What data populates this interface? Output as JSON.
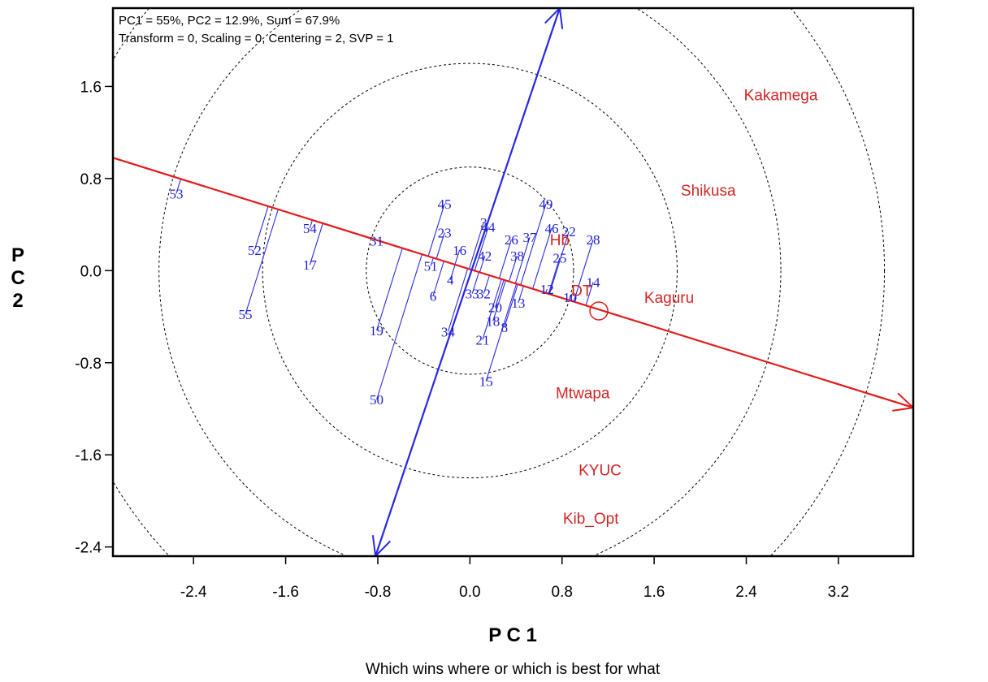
{
  "chart_data": {
    "type": "scatter",
    "info_lines": [
      "PC1 = 55%, PC2 = 12.9%, Sum = 67.9%",
      "Transform = 0, Scaling = 0, Centering = 2, SVP = 1"
    ],
    "xlabel": "P C 1",
    "ylabel": "P C 2",
    "caption": "Which wins where or which is best for what",
    "xlim": [
      -3.1,
      3.85
    ],
    "ylim": [
      -2.48,
      2.28
    ],
    "xticks": [
      "-2.4",
      "-1.6",
      "-0.8",
      "0.0",
      "0.8",
      "1.6",
      "2.4",
      "3.2"
    ],
    "yticks": [
      "1.6",
      "0.8",
      "0.0",
      "-0.8",
      "-1.6",
      "-2.4"
    ],
    "ring_radii": [
      0.9,
      1.8,
      2.7,
      3.6
    ],
    "average_environment_axis": {
      "from": [
        -3.1,
        0.98
      ],
      "to": [
        3.85,
        -1.19
      ]
    },
    "perpendicular_axis": {
      "from": [
        -0.82,
        -2.48
      ],
      "to": [
        0.78,
        2.28
      ]
    },
    "average_environment_marker": [
      1.12,
      -0.35
    ],
    "environments": [
      {
        "label": "Kakamega",
        "x": 2.7,
        "y": 1.53
      },
      {
        "label": "Shikusa",
        "x": 2.07,
        "y": 0.7
      },
      {
        "label": "Kaguru",
        "x": 1.73,
        "y": -0.23
      },
      {
        "label": "Mtwapa",
        "x": 0.98,
        "y": -1.06
      },
      {
        "label": "KYUC",
        "x": 1.13,
        "y": -1.73
      },
      {
        "label": "Kib_Opt",
        "x": 1.05,
        "y": -2.15
      },
      {
        "label": "Hb",
        "x": 0.78,
        "y": 0.27
      },
      {
        "label": "DT",
        "x": 0.97,
        "y": -0.17
      }
    ],
    "genotypes": [
      {
        "label": "53",
        "x": -2.55,
        "y": 0.67
      },
      {
        "label": "54",
        "x": -1.39,
        "y": 0.37
      },
      {
        "label": "52",
        "x": -1.87,
        "y": 0.18
      },
      {
        "label": "17",
        "x": -1.39,
        "y": 0.05
      },
      {
        "label": "55",
        "x": -1.95,
        "y": -0.38
      },
      {
        "label": "31",
        "x": -0.81,
        "y": 0.26
      },
      {
        "label": "19",
        "x": -0.81,
        "y": -0.52
      },
      {
        "label": "50",
        "x": -0.81,
        "y": -1.12
      },
      {
        "label": "45",
        "x": -0.22,
        "y": 0.58
      },
      {
        "label": "23",
        "x": -0.22,
        "y": 0.33
      },
      {
        "label": "16",
        "x": -0.09,
        "y": 0.18
      },
      {
        "label": "51",
        "x": -0.34,
        "y": 0.04
      },
      {
        "label": "4",
        "x": -0.17,
        "y": -0.08
      },
      {
        "label": "6",
        "x": -0.32,
        "y": -0.22
      },
      {
        "label": "34",
        "x": -0.19,
        "y": -0.53
      },
      {
        "label": "44",
        "x": 0.16,
        "y": 0.38
      },
      {
        "label": "3",
        "x": 0.12,
        "y": 0.42
      },
      {
        "label": "42",
        "x": 0.13,
        "y": 0.13
      },
      {
        "label": "33",
        "x": 0.02,
        "y": -0.2
      },
      {
        "label": "32",
        "x": 0.12,
        "y": -0.2
      },
      {
        "label": "21",
        "x": 0.11,
        "y": -0.6
      },
      {
        "label": "20",
        "x": 0.22,
        "y": -0.32
      },
      {
        "label": "18",
        "x": 0.2,
        "y": -0.44
      },
      {
        "label": "8",
        "x": 0.3,
        "y": -0.49
      },
      {
        "label": "15",
        "x": 0.14,
        "y": -0.96
      },
      {
        "label": "26",
        "x": 0.36,
        "y": 0.27
      },
      {
        "label": "37",
        "x": 0.52,
        "y": 0.29
      },
      {
        "label": "38",
        "x": 0.41,
        "y": 0.13
      },
      {
        "label": "13",
        "x": 0.42,
        "y": -0.28
      },
      {
        "label": "49",
        "x": 0.66,
        "y": 0.58
      },
      {
        "label": "46",
        "x": 0.71,
        "y": 0.37
      },
      {
        "label": "22",
        "x": 0.86,
        "y": 0.34
      },
      {
        "label": "28",
        "x": 1.07,
        "y": 0.27
      },
      {
        "label": "25",
        "x": 0.78,
        "y": 0.11
      },
      {
        "label": "12",
        "x": 0.67,
        "y": -0.16
      },
      {
        "label": "10",
        "x": 0.87,
        "y": -0.23
      },
      {
        "label": "14",
        "x": 1.07,
        "y": -0.1
      }
    ]
  }
}
